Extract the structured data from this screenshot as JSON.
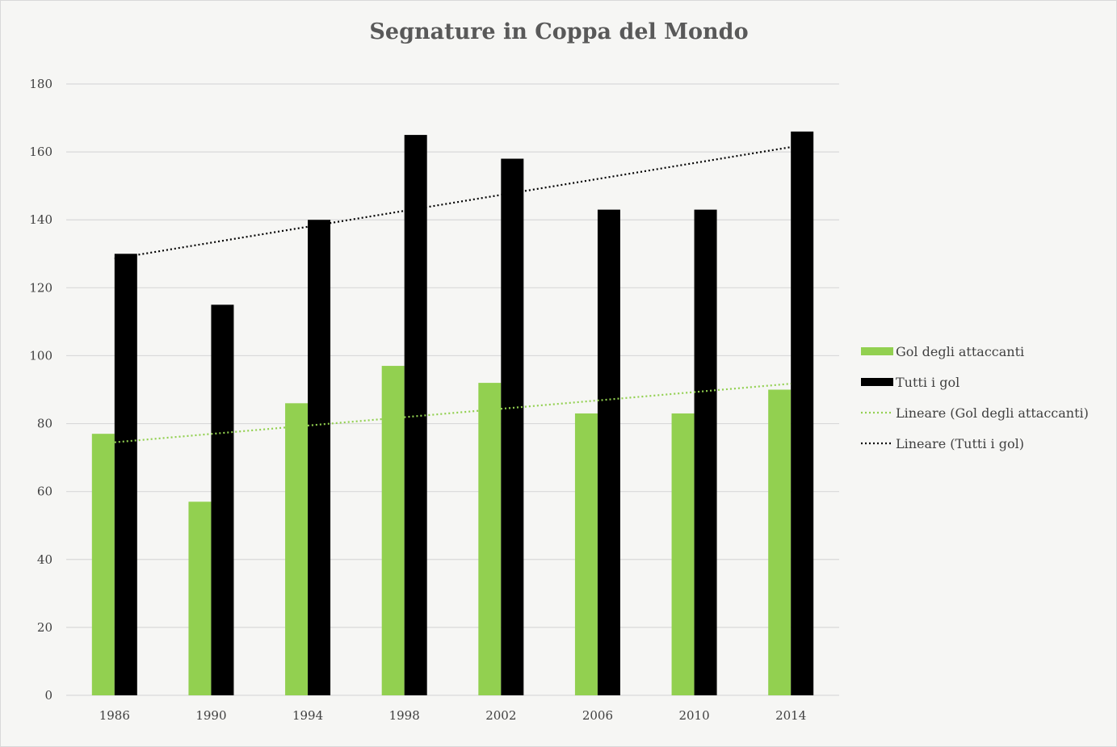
{
  "chart_data": {
    "type": "bar",
    "title": "Segnature in Coppa del Mondo",
    "categories": [
      "1986",
      "1990",
      "1994",
      "1998",
      "2002",
      "2006",
      "2010",
      "2014"
    ],
    "series": [
      {
        "name": "Gol degli attaccanti",
        "values": [
          77,
          57,
          86,
          97,
          92,
          83,
          83,
          90
        ],
        "color": "#92d050"
      },
      {
        "name": "Tutti i gol",
        "values": [
          130,
          115,
          140,
          165,
          158,
          143,
          143,
          166
        ],
        "color": "#000000"
      }
    ],
    "trendlines": [
      {
        "name": "Lineare  (Gol degli attaccanti)",
        "type": "linear",
        "series_index": 0,
        "color": "#92d050",
        "style": "dotted"
      },
      {
        "name": "Lineare  (Tutti i gol)",
        "type": "linear",
        "series_index": 1,
        "color": "#000000",
        "style": "dotted"
      }
    ],
    "yticks": [
      "0",
      "20",
      "40",
      "60",
      "80",
      "100",
      "120",
      "140",
      "160",
      "180"
    ],
    "ylim": [
      0,
      180
    ],
    "grid": true,
    "legend_position": "right",
    "background": "#f6f6f4",
    "gridline_color": "#d9d9d9"
  }
}
